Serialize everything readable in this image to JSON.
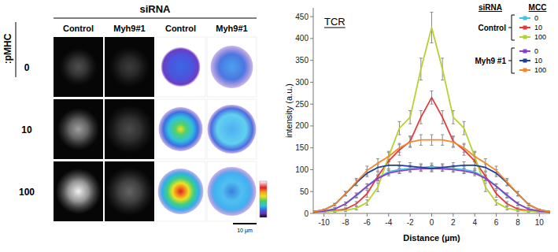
{
  "image_panel": {
    "header": "siRNA",
    "row_title": ":pMHC",
    "columns": [
      "Control",
      "Myh9#1",
      "Control",
      "Myh9#1"
    ],
    "rows": [
      "0",
      "10",
      "100"
    ],
    "scale_bar": "10 µm"
  },
  "chart_data": {
    "type": "line",
    "title": "TCR",
    "x_label": "Distance (µm)",
    "y_label": "intensity (a.u.)",
    "legend_headers": [
      "siRNA",
      "MCC"
    ],
    "legend": "top-right",
    "grid": false,
    "marker": "square",
    "x": [
      -11,
      -10,
      -9,
      -8,
      -7,
      -6,
      -5,
      -4,
      -3,
      -2,
      -1,
      0,
      1,
      2,
      3,
      4,
      5,
      6,
      7,
      8,
      9,
      10,
      11
    ],
    "xlim": [
      -11,
      11
    ],
    "xticks": [
      -10,
      -8,
      -6,
      -4,
      -2,
      0,
      2,
      4,
      6,
      8,
      10
    ],
    "ylim": [
      0,
      470
    ],
    "yticks": [
      0,
      50,
      100,
      150,
      200,
      250,
      300,
      350,
      400,
      450
    ],
    "series": [
      {
        "name": "0",
        "group": "Control",
        "color": "#3ec3e0",
        "values": [
          3,
          5,
          10,
          22,
          40,
          62,
          82,
          95,
          100,
          103,
          105,
          107,
          105,
          103,
          100,
          95,
          82,
          62,
          40,
          22,
          10,
          5,
          3
        ],
        "errors": [
          1,
          2,
          3,
          4,
          5,
          5,
          6,
          6,
          7,
          7,
          8,
          8,
          8,
          7,
          7,
          6,
          6,
          5,
          5,
          4,
          3,
          2,
          1
        ]
      },
      {
        "name": "10",
        "group": "Control",
        "color": "#e23b3b",
        "values": [
          3,
          4,
          6,
          10,
          22,
          45,
          85,
          120,
          145,
          165,
          220,
          265,
          220,
          165,
          145,
          120,
          85,
          45,
          22,
          10,
          6,
          4,
          3
        ],
        "errors": [
          1,
          1,
          2,
          3,
          5,
          8,
          10,
          10,
          12,
          12,
          15,
          15,
          15,
          12,
          12,
          10,
          10,
          8,
          5,
          3,
          2,
          1,
          1
        ]
      },
      {
        "name": "100",
        "group": "Control",
        "color": "#b4d232",
        "values": [
          3,
          4,
          5,
          7,
          12,
          25,
          60,
          130,
          195,
          220,
          330,
          425,
          330,
          220,
          195,
          130,
          60,
          25,
          12,
          7,
          5,
          4,
          3
        ],
        "errors": [
          1,
          1,
          2,
          3,
          4,
          6,
          10,
          12,
          15,
          15,
          25,
          35,
          25,
          15,
          15,
          12,
          10,
          6,
          4,
          3,
          2,
          1,
          1
        ]
      },
      {
        "name": "0",
        "group": "Myh9 #1",
        "color": "#8b3fc9",
        "values": [
          3,
          5,
          10,
          22,
          42,
          62,
          80,
          92,
          97,
          100,
          102,
          103,
          102,
          100,
          97,
          92,
          80,
          62,
          42,
          22,
          10,
          5,
          3
        ],
        "errors": [
          1,
          2,
          3,
          4,
          5,
          6,
          6,
          6,
          6,
          6,
          6,
          6,
          6,
          6,
          6,
          6,
          6,
          6,
          5,
          4,
          3,
          2,
          1
        ]
      },
      {
        "name": "10",
        "group": "Myh9 #1",
        "color": "#1f3e9a",
        "values": [
          4,
          8,
          20,
          45,
          70,
          92,
          105,
          110,
          110,
          108,
          105,
          103,
          105,
          108,
          110,
          110,
          105,
          92,
          70,
          45,
          20,
          8,
          4
        ],
        "errors": [
          1,
          2,
          3,
          5,
          7,
          8,
          8,
          8,
          8,
          8,
          8,
          8,
          8,
          8,
          8,
          8,
          8,
          8,
          7,
          5,
          3,
          2,
          1
        ]
      },
      {
        "name": "100",
        "group": "Myh9 #1",
        "color": "#f5892a",
        "values": [
          4,
          8,
          20,
          45,
          72,
          98,
          115,
          130,
          150,
          163,
          168,
          168,
          168,
          163,
          150,
          130,
          115,
          98,
          72,
          45,
          20,
          8,
          4
        ],
        "errors": [
          1,
          2,
          3,
          5,
          8,
          10,
          10,
          10,
          10,
          12,
          12,
          12,
          12,
          12,
          10,
          10,
          10,
          10,
          8,
          5,
          3,
          2,
          1
        ]
      }
    ]
  }
}
